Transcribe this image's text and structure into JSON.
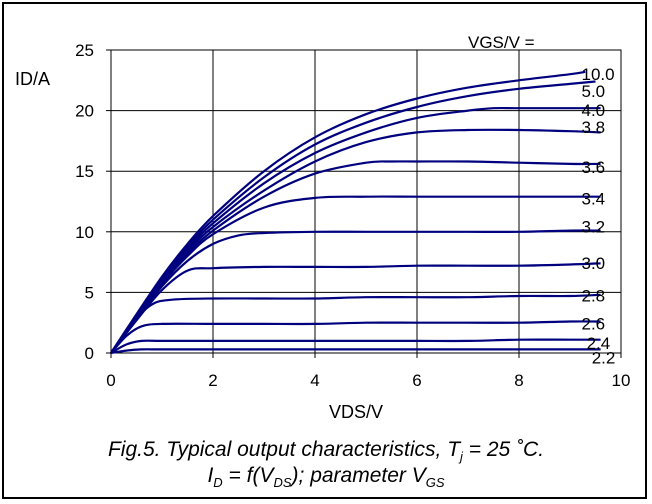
{
  "chart_data": {
    "type": "line",
    "xlabel": "VDS/V",
    "ylabel": "ID/A",
    "xlim": [
      0,
      10
    ],
    "ylim": [
      0,
      25
    ],
    "x_ticks": [
      "0",
      "2",
      "4",
      "6",
      "8",
      "10"
    ],
    "y_ticks": [
      "0",
      "5",
      "10",
      "15",
      "20",
      "25"
    ],
    "grid": true,
    "legend_title": "VGS/V =",
    "line_color": "#00007f",
    "series": [
      {
        "name": "10.0",
        "x": [
          0,
          0.5,
          1,
          1.5,
          2,
          3,
          4,
          5,
          6,
          7,
          8,
          9,
          9.3
        ],
        "y": [
          0,
          3.2,
          6.3,
          9.0,
          11.3,
          15.0,
          17.8,
          19.7,
          21.0,
          21.9,
          22.5,
          23.0,
          23.2
        ]
      },
      {
        "name": "5.0",
        "x": [
          0,
          0.5,
          1,
          1.5,
          2,
          3,
          4,
          5,
          6,
          7,
          8,
          9,
          9.5
        ],
        "y": [
          0,
          3.1,
          6.2,
          8.8,
          11.0,
          14.5,
          17.2,
          19.0,
          20.3,
          21.2,
          21.8,
          22.2,
          22.4
        ]
      },
      {
        "name": "4.0",
        "x": [
          0,
          0.5,
          1,
          1.5,
          2,
          3,
          4,
          5,
          6,
          7,
          7.5,
          8,
          9,
          9.6
        ],
        "y": [
          0,
          3.0,
          6.0,
          8.6,
          10.7,
          14.0,
          16.5,
          18.2,
          19.4,
          20.0,
          20.2,
          20.2,
          20.2,
          20.2
        ]
      },
      {
        "name": "3.8",
        "x": [
          0,
          0.5,
          1,
          1.5,
          2,
          3,
          4,
          5,
          6,
          7,
          8,
          9,
          9.6
        ],
        "y": [
          0,
          3.0,
          5.9,
          8.4,
          10.4,
          13.4,
          15.8,
          17.4,
          18.2,
          18.4,
          18.4,
          18.3,
          18.2
        ]
      },
      {
        "name": "3.6",
        "x": [
          0,
          0.5,
          1,
          1.5,
          2,
          3,
          4,
          5,
          5.5,
          6,
          7,
          8,
          9,
          9.6
        ],
        "y": [
          0,
          2.9,
          5.8,
          8.2,
          10.1,
          12.9,
          14.8,
          15.7,
          15.8,
          15.8,
          15.8,
          15.7,
          15.6,
          15.6
        ]
      },
      {
        "name": "3.4",
        "x": [
          0,
          0.5,
          1,
          1.5,
          2,
          3,
          4,
          5,
          6,
          7,
          8,
          9,
          9.6
        ],
        "y": [
          0,
          2.9,
          5.7,
          8.0,
          9.8,
          12.0,
          12.8,
          12.9,
          12.9,
          12.9,
          12.9,
          12.9,
          12.9
        ]
      },
      {
        "name": "3.2",
        "x": [
          0,
          0.5,
          1,
          1.5,
          2,
          2.5,
          3,
          4,
          5,
          6,
          7,
          8,
          9,
          9.6
        ],
        "y": [
          0,
          2.8,
          5.5,
          7.6,
          9.0,
          9.7,
          9.9,
          10.0,
          10.0,
          10.0,
          10.0,
          10.0,
          10.1,
          10.1
        ]
      },
      {
        "name": "3.0",
        "x": [
          0,
          0.5,
          1,
          1.5,
          2,
          3,
          4,
          5,
          6,
          7,
          8,
          9,
          9.6
        ],
        "y": [
          0,
          2.7,
          5.2,
          6.8,
          7.0,
          7.1,
          7.1,
          7.1,
          7.2,
          7.2,
          7.2,
          7.3,
          7.4
        ]
      },
      {
        "name": "2.8",
        "x": [
          0,
          0.4,
          0.8,
          1.2,
          2,
          3,
          4,
          5,
          6,
          7,
          8,
          9,
          9.6
        ],
        "y": [
          0,
          2.4,
          4.0,
          4.4,
          4.5,
          4.5,
          4.5,
          4.6,
          4.6,
          4.6,
          4.7,
          4.7,
          4.8
        ]
      },
      {
        "name": "2.6",
        "x": [
          0,
          0.3,
          0.6,
          1,
          2,
          3,
          4,
          5,
          6,
          7,
          8,
          9,
          9.6
        ],
        "y": [
          0,
          1.4,
          2.2,
          2.4,
          2.4,
          2.4,
          2.4,
          2.5,
          2.5,
          2.5,
          2.5,
          2.6,
          2.6
        ]
      },
      {
        "name": "2.4",
        "x": [
          0,
          0.3,
          0.6,
          1,
          2,
          3,
          4,
          5,
          6,
          7,
          8,
          9,
          9.6
        ],
        "y": [
          0,
          0.7,
          1.0,
          1.0,
          1.0,
          1.0,
          1.0,
          1.0,
          1.0,
          1.0,
          1.1,
          1.1,
          1.1
        ]
      },
      {
        "name": "2.2",
        "x": [
          0,
          0.3,
          0.6,
          1,
          2,
          4,
          6,
          8,
          9.6
        ],
        "y": [
          0,
          0.2,
          0.3,
          0.3,
          0.3,
          0.3,
          0.3,
          0.3,
          0.3
        ]
      }
    ],
    "label_positions_data_units": [
      {
        "name": "10.0",
        "x": 9.5,
        "y": 23.2
      },
      {
        "name": "5.0",
        "x": 9.5,
        "y": 21.8
      },
      {
        "name": "4.0",
        "x": 9.5,
        "y": 20.2
      },
      {
        "name": "3.8",
        "x": 9.5,
        "y": 18.8
      },
      {
        "name": "3.6",
        "x": 9.5,
        "y": 15.5
      },
      {
        "name": "3.4",
        "x": 9.5,
        "y": 12.9
      },
      {
        "name": "3.2",
        "x": 9.5,
        "y": 10.6
      },
      {
        "name": "3.0",
        "x": 9.5,
        "y": 7.6
      },
      {
        "name": "2.8",
        "x": 9.5,
        "y": 4.9
      },
      {
        "name": "2.6",
        "x": 9.5,
        "y": 2.6
      },
      {
        "name": "2.4",
        "x": 9.6,
        "y": 1.0
      },
      {
        "name": "2.2",
        "x": 9.7,
        "y": -0.2
      }
    ]
  },
  "caption": {
    "line1_prefix": "Fig.5.  Typical output characteristics, T",
    "line1_sub": "j",
    "line1_suffix": " = 25 ˚C.",
    "line2_a": "I",
    "line2_a_sub": "D",
    "line2_b": " = f(V",
    "line2_b_sub": "DS",
    "line2_c": "); parameter V",
    "line2_c_sub": "GS"
  }
}
